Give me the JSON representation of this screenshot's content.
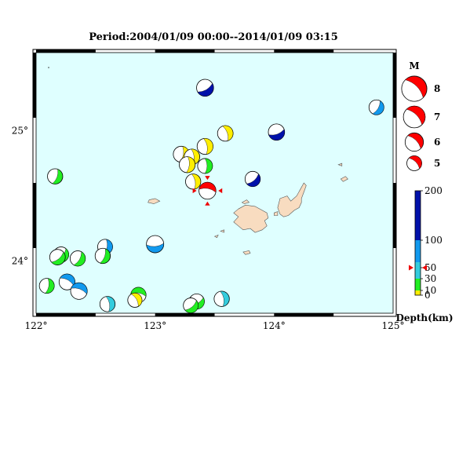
{
  "title": "Period:2004/01/09 00:00--2014/01/09 03:15",
  "map": {
    "lon_range": [
      122,
      125
    ],
    "lat_range": [
      23.6,
      25.6
    ],
    "ocean_color": "#dfffff",
    "land_color": "#f8dcc0",
    "x_ticks": [
      "122°",
      "123°",
      "124°",
      "125°"
    ],
    "y_ticks": [
      "25°",
      "24°"
    ]
  },
  "magnitude_legend": {
    "title": "M",
    "entries": [
      {
        "label": "8",
        "mag": 8
      },
      {
        "label": "7",
        "mag": 7
      },
      {
        "label": "6",
        "mag": 6
      },
      {
        "label": "5",
        "mag": 5
      }
    ],
    "color": "#ff0000"
  },
  "depth_legend": {
    "title": "Depth(km)",
    "ticks": [
      "200",
      "100",
      "50",
      "30",
      "10",
      "0"
    ],
    "marker_depth": 50,
    "bands": [
      {
        "from": 0,
        "to": 10,
        "color": "#ffee00"
      },
      {
        "from": 10,
        "to": 30,
        "color": "#22ee22"
      },
      {
        "from": 30,
        "to": 60,
        "color": "#33ccdd"
      },
      {
        "from": 60,
        "to": 100,
        "color": "#1199ee"
      },
      {
        "from": 100,
        "to": 200,
        "color": "#0011aa"
      }
    ]
  },
  "events": [
    {
      "lon": 123.42,
      "lat": 25.33,
      "mag": 5.6,
      "color": "#0011aa",
      "strike": 30
    },
    {
      "lon": 124.86,
      "lat": 25.18,
      "mag": 5.0,
      "color": "#1199ee",
      "strike": 60
    },
    {
      "lon": 124.02,
      "lat": 24.99,
      "mag": 5.4,
      "color": "#0011aa",
      "strike": 20
    },
    {
      "lon": 123.59,
      "lat": 24.98,
      "mag": 5.2,
      "color": "#ffee00",
      "strike": 110
    },
    {
      "lon": 123.42,
      "lat": 24.88,
      "mag": 5.3,
      "color": "#ffee00",
      "strike": 100
    },
    {
      "lon": 123.22,
      "lat": 24.82,
      "mag": 5.3,
      "color": "#ffee00",
      "strike": 80
    },
    {
      "lon": 123.31,
      "lat": 24.8,
      "mag": 5.2,
      "color": "#ffee00",
      "strike": 95
    },
    {
      "lon": 123.27,
      "lat": 24.74,
      "mag": 5.3,
      "color": "#ffee00",
      "strike": 85
    },
    {
      "lon": 123.42,
      "lat": 24.73,
      "mag": 5.0,
      "color": "#22ee22",
      "strike": 90
    },
    {
      "lon": 123.82,
      "lat": 24.63,
      "mag": 5.1,
      "color": "#0011aa",
      "strike": 40
    },
    {
      "lon": 123.32,
      "lat": 24.61,
      "mag": 5.1,
      "color": "#ffee00",
      "strike": 100
    },
    {
      "lon": 123.44,
      "lat": 24.54,
      "mag": 5.6,
      "color": "#ff0000",
      "strike": 170,
      "selected": true
    },
    {
      "lon": 122.16,
      "lat": 24.65,
      "mag": 5.1,
      "color": "#22ee22",
      "strike": 70
    },
    {
      "lon": 123.0,
      "lat": 24.13,
      "mag": 5.7,
      "color": "#1199ee",
      "strike": 5
    },
    {
      "lon": 122.58,
      "lat": 24.11,
      "mag": 5.0,
      "color": "#1199ee",
      "strike": 80
    },
    {
      "lon": 122.21,
      "lat": 24.05,
      "mag": 5.1,
      "color": "#22ee22",
      "strike": 50
    },
    {
      "lon": 122.18,
      "lat": 24.03,
      "mag": 5.2,
      "color": "#22ee22",
      "strike": 40
    },
    {
      "lon": 122.35,
      "lat": 24.02,
      "mag": 5.1,
      "color": "#22ee22",
      "strike": 60
    },
    {
      "lon": 122.56,
      "lat": 24.04,
      "mag": 5.1,
      "color": "#22ee22",
      "strike": 70
    },
    {
      "lon": 122.26,
      "lat": 23.84,
      "mag": 5.3,
      "color": "#1199ee",
      "strike": 150
    },
    {
      "lon": 122.36,
      "lat": 23.77,
      "mag": 5.5,
      "color": "#1199ee",
      "strike": 160
    },
    {
      "lon": 122.09,
      "lat": 23.81,
      "mag": 5.0,
      "color": "#22ee22",
      "strike": 80
    },
    {
      "lon": 122.86,
      "lat": 23.74,
      "mag": 5.1,
      "color": "#22ee22",
      "strike": 170
    },
    {
      "lon": 122.83,
      "lat": 23.7,
      "mag": 4.8,
      "color": "#ffee00",
      "strike": 120
    },
    {
      "lon": 122.6,
      "lat": 23.67,
      "mag": 5.1,
      "color": "#33ccdd",
      "strike": 100
    },
    {
      "lon": 123.35,
      "lat": 23.69,
      "mag": 5.1,
      "color": "#22ee22",
      "strike": 30
    },
    {
      "lon": 123.3,
      "lat": 23.66,
      "mag": 5.0,
      "color": "#22ee22",
      "strike": 40
    },
    {
      "lon": 123.56,
      "lat": 23.71,
      "mag": 5.1,
      "color": "#33ccdd",
      "strike": 100
    }
  ],
  "islands": [
    [
      [
        123.7,
        24.4
      ],
      [
        123.76,
        24.43
      ],
      [
        123.84,
        24.42
      ],
      [
        123.9,
        24.39
      ],
      [
        123.94,
        24.37
      ],
      [
        123.95,
        24.33
      ],
      [
        123.92,
        24.31
      ],
      [
        123.94,
        24.27
      ],
      [
        123.9,
        24.24
      ],
      [
        123.84,
        24.22
      ],
      [
        123.8,
        24.25
      ],
      [
        123.74,
        24.24
      ],
      [
        123.7,
        24.27
      ],
      [
        123.66,
        24.3
      ],
      [
        123.7,
        24.34
      ],
      [
        123.66,
        24.37
      ]
    ],
    [
      [
        124.05,
        24.48
      ],
      [
        124.11,
        24.5
      ],
      [
        124.14,
        24.46
      ],
      [
        124.19,
        24.5
      ],
      [
        124.22,
        24.55
      ],
      [
        124.25,
        24.6
      ],
      [
        124.27,
        24.58
      ],
      [
        124.25,
        24.53
      ],
      [
        124.23,
        24.48
      ],
      [
        124.23,
        24.45
      ],
      [
        124.21,
        24.41
      ],
      [
        124.17,
        24.39
      ],
      [
        124.12,
        24.35
      ],
      [
        124.08,
        24.34
      ],
      [
        124.05,
        24.36
      ],
      [
        124.03,
        24.41
      ]
    ],
    [
      [
        122.95,
        24.47
      ],
      [
        123.0,
        24.48
      ],
      [
        123.04,
        24.46
      ],
      [
        122.99,
        24.44
      ],
      [
        122.94,
        24.45
      ]
    ],
    [
      [
        123.73,
        24.45
      ],
      [
        123.77,
        24.47
      ],
      [
        123.79,
        24.45
      ],
      [
        123.75,
        24.44
      ]
    ],
    [
      [
        124.0,
        24.37
      ],
      [
        124.03,
        24.38
      ],
      [
        124.03,
        24.35
      ],
      [
        124.0,
        24.35
      ]
    ],
    [
      [
        123.74,
        24.07
      ],
      [
        123.79,
        24.08
      ],
      [
        123.8,
        24.06
      ],
      [
        123.76,
        24.05
      ]
    ],
    [
      [
        124.56,
        24.63
      ],
      [
        124.6,
        24.65
      ],
      [
        124.62,
        24.63
      ],
      [
        124.58,
        24.61
      ]
    ],
    [
      [
        124.54,
        24.74
      ],
      [
        124.57,
        24.75
      ],
      [
        124.57,
        24.73
      ]
    ],
    [
      [
        123.55,
        24.23
      ],
      [
        123.58,
        24.24
      ],
      [
        123.58,
        24.22
      ]
    ],
    [
      [
        123.5,
        24.19
      ],
      [
        123.53,
        24.2
      ],
      [
        123.52,
        24.18
      ]
    ]
  ]
}
